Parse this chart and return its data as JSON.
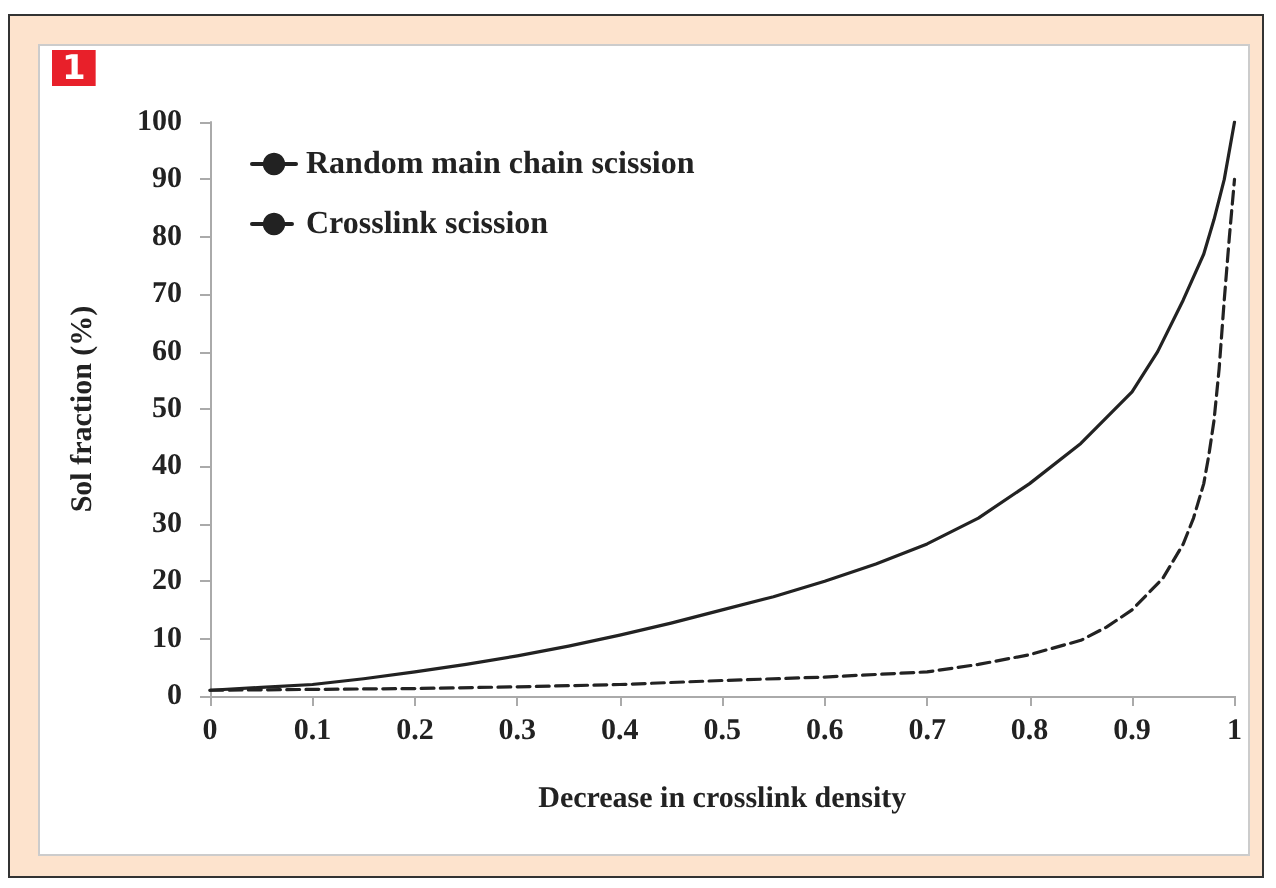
{
  "chart_data": {
    "type": "line",
    "xlabel": "Decrease in crosslink density",
    "ylabel": "Sol fraction (%)",
    "annotations": [
      "1"
    ],
    "xlim": [
      0,
      1
    ],
    "xticks": [
      0,
      0.1,
      0.2,
      0.3,
      0.4,
      0.5,
      0.6,
      0.7,
      0.8,
      0.9,
      1
    ],
    "ylim": [
      0,
      100
    ],
    "yticks": [
      0,
      10,
      20,
      30,
      40,
      50,
      60,
      70,
      80,
      90,
      100
    ],
    "grid": false,
    "legend": "top left",
    "marker": "none",
    "series": [
      {
        "name": "Random main chain scission",
        "color": "#222222",
        "line_style": "solid",
        "x": [
          0,
          0.05,
          0.1,
          0.15,
          0.2,
          0.25,
          0.3,
          0.35,
          0.4,
          0.45,
          0.5,
          0.55,
          0.6,
          0.65,
          0.7,
          0.75,
          0.8,
          0.85,
          0.875,
          0.9,
          0.925,
          0.95,
          0.97,
          0.98,
          0.99,
          1
        ],
        "values": [
          1,
          1.5,
          2,
          3,
          4.2,
          5.5,
          7,
          8.7,
          10.6,
          12.7,
          15,
          17.3,
          20,
          23,
          26.5,
          31,
          37,
          44,
          48.5,
          53,
          60,
          69,
          77,
          83,
          90,
          100
        ]
      },
      {
        "name": "Crosslink scission",
        "color": "#222222",
        "line_style": "dashed",
        "x": [
          0,
          0.1,
          0.2,
          0.3,
          0.4,
          0.5,
          0.6,
          0.7,
          0.75,
          0.8,
          0.85,
          0.875,
          0.9,
          0.93,
          0.95,
          0.96,
          0.97,
          0.975,
          0.98,
          0.985,
          0.99,
          0.995,
          1
        ],
        "values": [
          1,
          1.15,
          1.3,
          1.6,
          2,
          2.7,
          3.3,
          4.2,
          5.5,
          7.2,
          9.7,
          12,
          15,
          20.5,
          26.5,
          31,
          37,
          42,
          48,
          57,
          69,
          80,
          90
        ]
      }
    ]
  }
}
